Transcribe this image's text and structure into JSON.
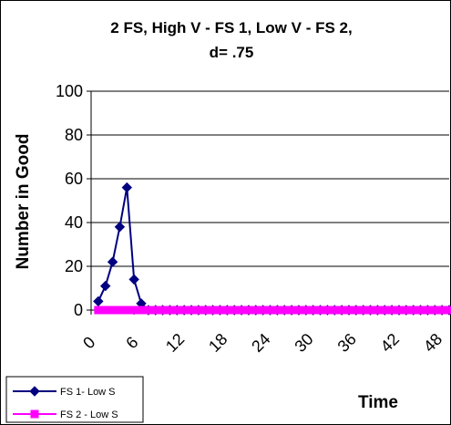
{
  "chart_data": {
    "type": "line",
    "title_line1": "2 FS, High V - FS 1, Low V - FS 2,",
    "title_line2": "d= .75",
    "xlabel": "Time",
    "ylabel": "Number in Good",
    "xlim": [
      0,
      50
    ],
    "ylim": [
      0,
      100
    ],
    "y_ticks": [
      "0",
      "20",
      "40",
      "60",
      "80",
      "100"
    ],
    "x_ticks": [
      "0",
      "6",
      "12",
      "18",
      "24",
      "30",
      "36",
      "42",
      "48"
    ],
    "grid": true,
    "legend_position": "bottom-left",
    "series": [
      {
        "name": "FS 1- Low S",
        "color": "#000080",
        "marker": "diamond",
        "x": [
          1,
          2,
          3,
          4,
          5,
          6,
          7,
          8,
          9,
          10,
          11,
          12,
          13,
          14,
          15,
          16,
          17,
          18,
          19,
          20,
          21,
          22,
          23,
          24,
          25,
          26,
          27,
          28,
          29,
          30,
          31,
          32,
          33,
          34,
          35,
          36,
          37,
          38,
          39,
          40,
          41,
          42,
          43,
          44,
          45,
          46,
          47,
          48,
          49,
          50
        ],
        "values": [
          4,
          11,
          22,
          38,
          56,
          14,
          3,
          0,
          0,
          0,
          0,
          0,
          0,
          0,
          0,
          0,
          0,
          0,
          0,
          0,
          0,
          0,
          0,
          0,
          0,
          0,
          0,
          0,
          0,
          0,
          0,
          0,
          0,
          0,
          0,
          0,
          0,
          0,
          0,
          0,
          0,
          0,
          0,
          0,
          0,
          0,
          0,
          0,
          0,
          0
        ]
      },
      {
        "name": "FS 2 - Low S",
        "color": "#ff00ff",
        "marker": "square",
        "x": [
          1,
          2,
          3,
          4,
          5,
          6,
          7,
          8,
          9,
          10,
          11,
          12,
          13,
          14,
          15,
          16,
          17,
          18,
          19,
          20,
          21,
          22,
          23,
          24,
          25,
          26,
          27,
          28,
          29,
          30,
          31,
          32,
          33,
          34,
          35,
          36,
          37,
          38,
          39,
          40,
          41,
          42,
          43,
          44,
          45,
          46,
          47,
          48,
          49,
          50
        ],
        "values": [
          0,
          0,
          0,
          0,
          0,
          0,
          0,
          0,
          0,
          0,
          0,
          0,
          0,
          0,
          0,
          0,
          0,
          0,
          0,
          0,
          0,
          0,
          0,
          0,
          0,
          0,
          0,
          0,
          0,
          0,
          0,
          0,
          0,
          0,
          0,
          0,
          0,
          0,
          0,
          0,
          0,
          0,
          0,
          0,
          0,
          0,
          0,
          0,
          0,
          0
        ]
      }
    ]
  }
}
